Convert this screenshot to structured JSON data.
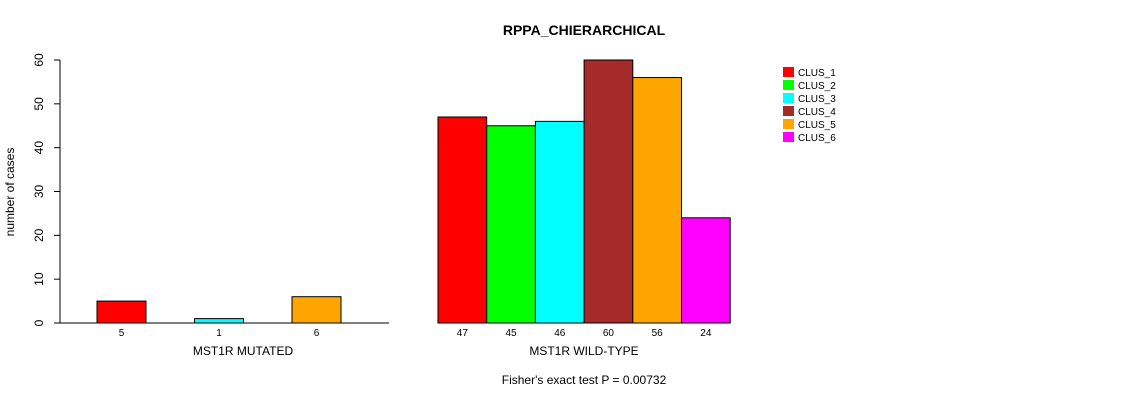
{
  "chart_data": {
    "type": "bar",
    "title": "RPPA_CHIERARCHICAL",
    "ylabel": "number of cases",
    "ylim": [
      0,
      60
    ],
    "yticks": [
      0,
      10,
      20,
      30,
      40,
      50,
      60
    ],
    "series_names": [
      "CLUS_1",
      "CLUS_2",
      "CLUS_3",
      "CLUS_4",
      "CLUS_5",
      "CLUS_6"
    ],
    "colors": [
      "#ff0000",
      "#00ff00",
      "#00ffff",
      "#a52a2a",
      "#ffa500",
      "#ff00ff"
    ],
    "groups": [
      {
        "name": "MST1R MUTATED",
        "bars": [
          {
            "series": "CLUS_1",
            "value": 5
          },
          {
            "series": "CLUS_3",
            "value": 1
          },
          {
            "series": "CLUS_5",
            "value": 6
          }
        ]
      },
      {
        "name": "MST1R WILD-TYPE",
        "bars": [
          {
            "series": "CLUS_1",
            "value": 47
          },
          {
            "series": "CLUS_2",
            "value": 45
          },
          {
            "series": "CLUS_3",
            "value": 46
          },
          {
            "series": "CLUS_4",
            "value": 60
          },
          {
            "series": "CLUS_5",
            "value": 56
          },
          {
            "series": "CLUS_6",
            "value": 24
          }
        ]
      }
    ],
    "footer": "Fisher's exact test P = 0.00732",
    "legend_position": "top-right"
  }
}
